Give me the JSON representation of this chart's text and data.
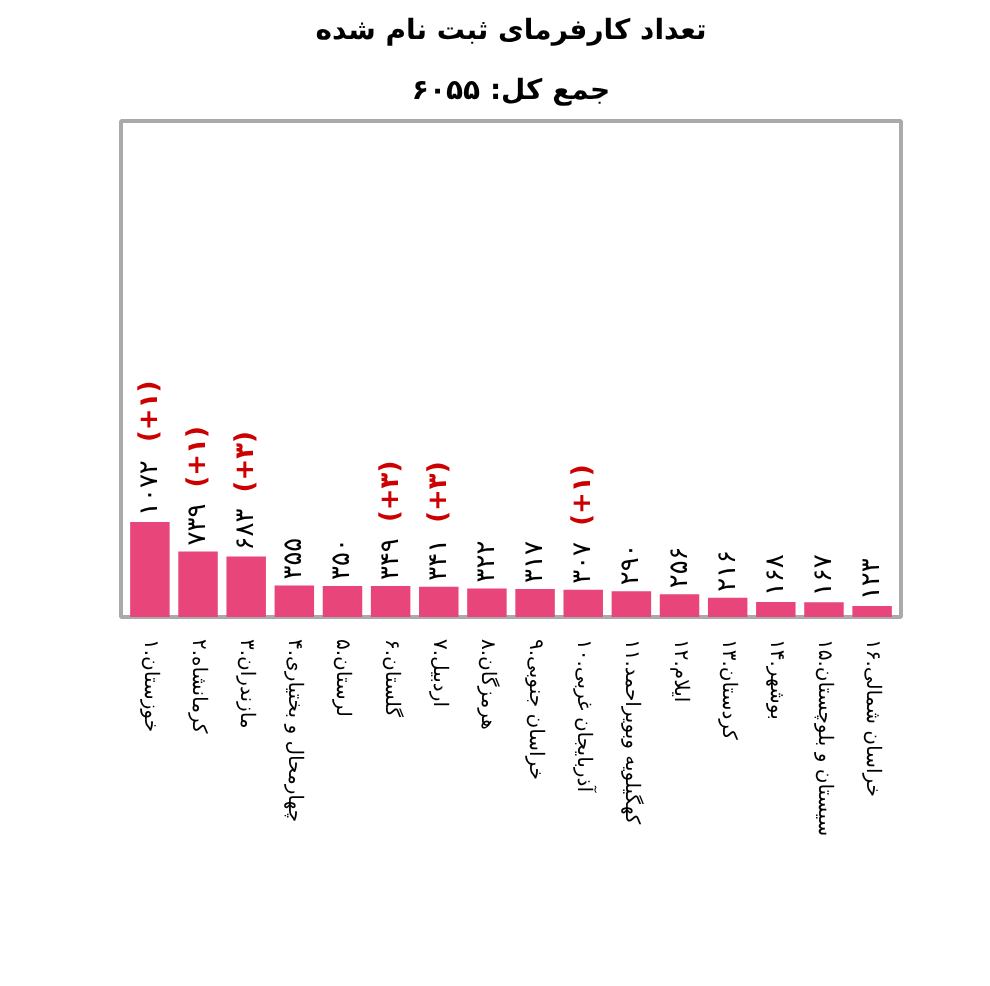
{
  "chart_data": {
    "type": "bar",
    "title": "تعداد کارفرمای ثبت نام شده",
    "subtitle": "جمع کل: ۶۰۵۵",
    "categories": [
      "۱.خوزستان",
      "۲.کرمانشاه",
      "۳.مازندران",
      "۴.چهارمحال و بختیاری",
      "۵.لرستان",
      "۶.گلستان",
      "۷.اردبیل",
      "۸.هرمزگان",
      "۹.خراسان جنوبی",
      "۱۰.آذربایجان غربی",
      "۱۱.کهگیلویه وبویراحمد",
      "۱۲.ایلام",
      "۱۳.کردستان",
      "۱۴.بوشهر",
      "۱۵.سیستان و بلوچستان",
      "۱۶.خراسان شمالی"
    ],
    "values": [
      1072,
      739,
      683,
      355,
      350,
      349,
      341,
      322,
      317,
      307,
      290,
      256,
      216,
      168,
      167,
      123
    ],
    "value_labels": [
      "۱۰۷۲ (+۱)",
      "۷۳۹ (+۱)",
      "۶۸۳ (+۳)",
      "۳۵۵",
      "۳۵۰",
      "۳۴۹ (+۳)",
      "۳۴۱ (+۳)",
      "۳۲۲",
      "۳۱۷",
      "۳۰۷ (+۱)",
      "۲۹۰",
      "۲۵۶",
      "۲۱۶",
      "۱۶۸",
      "۱۶۷",
      "۱۲۳"
    ],
    "color": "#e8457a",
    "ylim": [
      0,
      5600
    ],
    "tick_labels": "x",
    "grid": false
  }
}
